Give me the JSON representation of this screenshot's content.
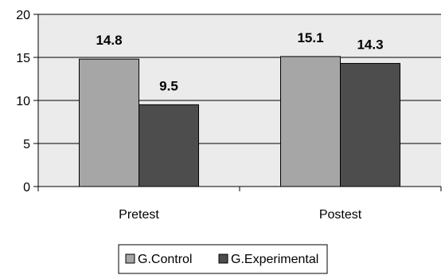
{
  "chart_data": {
    "type": "bar",
    "categories": [
      "Pretest",
      "Postest"
    ],
    "series": [
      {
        "name": "G.Control",
        "values": [
          14.8,
          15.1
        ],
        "color": "#a6a6a6"
      },
      {
        "name": "G.Experimental",
        "values": [
          9.5,
          14.3
        ],
        "color": "#4d4d4d"
      }
    ],
    "ylim": [
      0,
      20
    ],
    "yticks": [
      0,
      5,
      10,
      15,
      20
    ],
    "grid": true,
    "plot_background": "#ebebeb",
    "legend_position": "bottom-center"
  }
}
